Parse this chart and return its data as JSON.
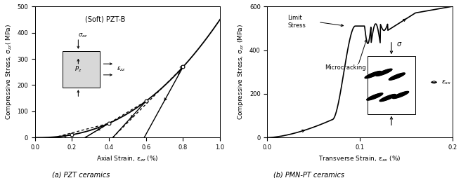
{
  "fig_width": 6.56,
  "fig_height": 2.54,
  "dpi": 100,
  "bg_color": "#ffffff",
  "left_title": "(Soft) PZT-B",
  "left_xlabel": "Axial Strain, ε$_{zz}$ (%)",
  "left_ylabel": "Compressive Stress, σ$_{zz}$( MPa)",
  "left_xlim": [
    0,
    1.0
  ],
  "left_ylim": [
    0,
    500
  ],
  "left_xticks": [
    0,
    0.2,
    0.4,
    0.6,
    0.8,
    1.0
  ],
  "left_yticks": [
    0,
    100,
    200,
    300,
    400,
    500
  ],
  "right_ylabel": "Compressive Stress, σ$_{zz}$ (MPa)",
  "right_xlabel": "Transverse Strain, ε$_{xx}$ (%)",
  "right_xlim": [
    0,
    0.2
  ],
  "right_ylim": [
    0,
    600
  ],
  "right_xticks": [
    0,
    0.1,
    0.2
  ],
  "right_yticks": [
    0,
    200,
    400,
    600
  ],
  "caption_left": "(a) PZT ceramics",
  "caption_right": "(b) PMN-PT ceramics"
}
